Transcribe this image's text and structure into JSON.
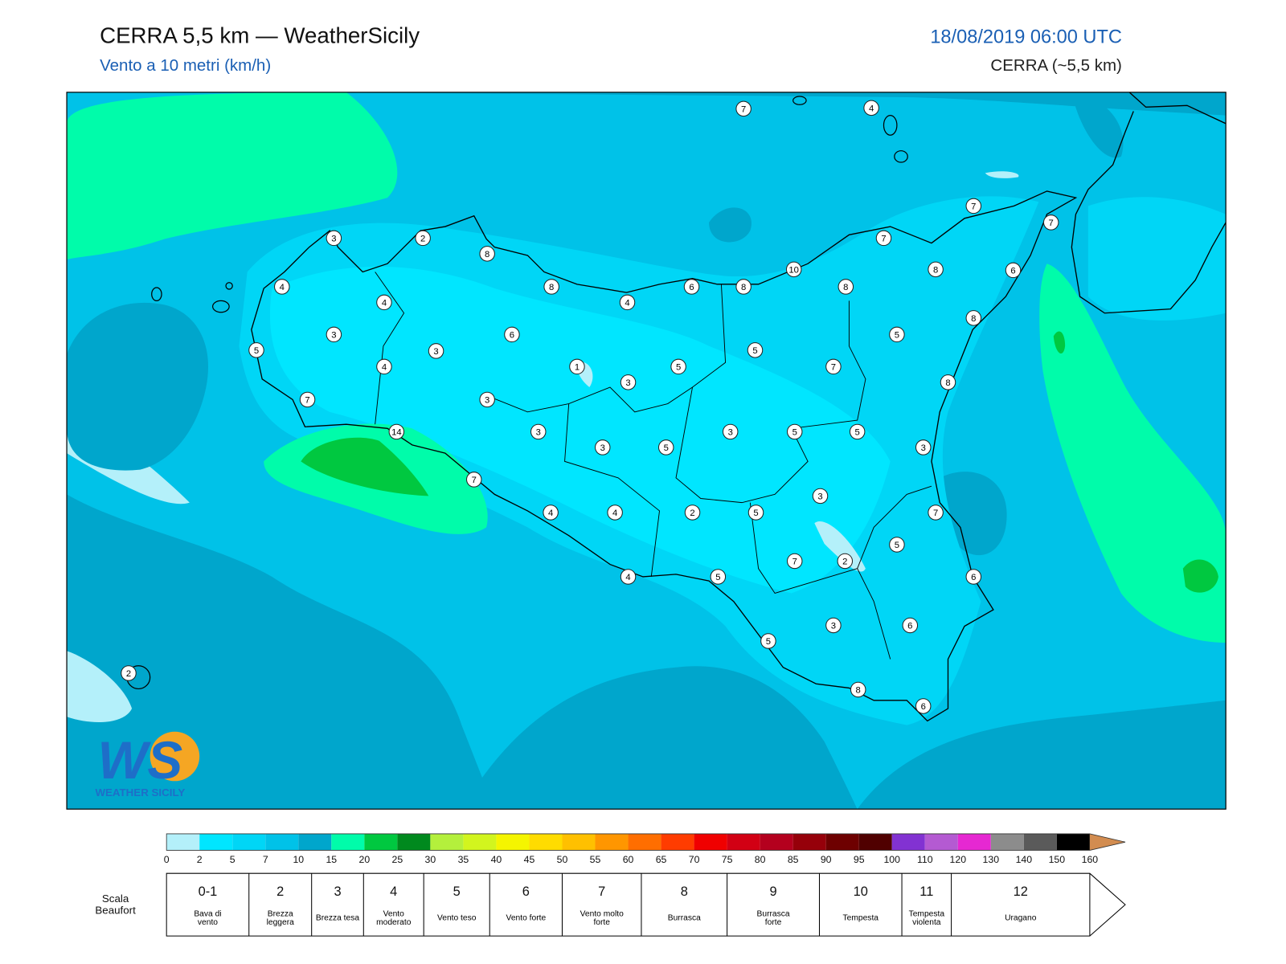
{
  "header": {
    "title": "CERRA 5,5 km — WeatherSicily",
    "subtitle": "Vento a 10 metri (km/h)",
    "datetime": "18/08/2019 06:00 UTC",
    "model": "CERRA (~5,5 km)"
  },
  "stations": [
    7,
    4,
    7,
    7,
    3,
    2,
    8,
    7,
    10,
    8,
    6,
    4,
    8,
    6,
    8,
    8,
    4,
    4,
    8,
    3,
    6,
    5,
    5,
    3,
    5,
    4,
    1,
    5,
    7,
    3,
    8,
    7,
    3,
    14,
    3,
    3,
    5,
    5,
    3,
    5,
    3,
    7,
    3,
    4,
    4,
    2,
    5,
    7,
    5,
    7,
    2,
    4,
    5,
    6,
    3,
    6,
    5,
    2,
    8,
    6
  ],
  "colorbar": {
    "ticks": [
      0,
      2,
      5,
      7,
      10,
      15,
      20,
      25,
      30,
      35,
      40,
      45,
      50,
      55,
      60,
      65,
      70,
      75,
      80,
      85,
      90,
      95,
      100,
      110,
      120,
      130,
      140,
      150,
      160
    ],
    "colors": [
      "#b4f0fa",
      "#00e6ff",
      "#00d6f6",
      "#00c2e8",
      "#00a6cc",
      "#00fcaa",
      "#00c840",
      "#00891e",
      "#b4f03c",
      "#d2f51e",
      "#f5f500",
      "#ffdc00",
      "#ffc000",
      "#ff9600",
      "#ff6e00",
      "#ff3c00",
      "#f00000",
      "#d20014",
      "#b4001e",
      "#96000a",
      "#6e0000",
      "#500000",
      "#8232d2",
      "#b45ad2",
      "#e628d2",
      "#8c8c8c",
      "#5a5a5a",
      "#000000"
    ],
    "extend_color": "#d28c50"
  },
  "beaufort": {
    "label": "Scala Beaufort",
    "entries": [
      {
        "force": "0-1",
        "desc": "Bava di vento"
      },
      {
        "force": 2,
        "desc": "Brezza leggera"
      },
      {
        "force": 3,
        "desc": "Brezza tesa"
      },
      {
        "force": 4,
        "desc": "Vento moderato"
      },
      {
        "force": 5,
        "desc": "Vento teso"
      },
      {
        "force": 6,
        "desc": "Vento forte"
      },
      {
        "force": 7,
        "desc": "Vento molto forte"
      },
      {
        "force": 8,
        "desc": "Burrasca"
      },
      {
        "force": 9,
        "desc": "Burrasca forte"
      },
      {
        "force": 10,
        "desc": "Tempesta"
      },
      {
        "force": 11,
        "desc": "Tempesta violenta"
      },
      {
        "force": 12,
        "desc": "Uragano"
      }
    ]
  },
  "logo": {
    "mark": "WS",
    "text": "WEATHER SICILY"
  }
}
